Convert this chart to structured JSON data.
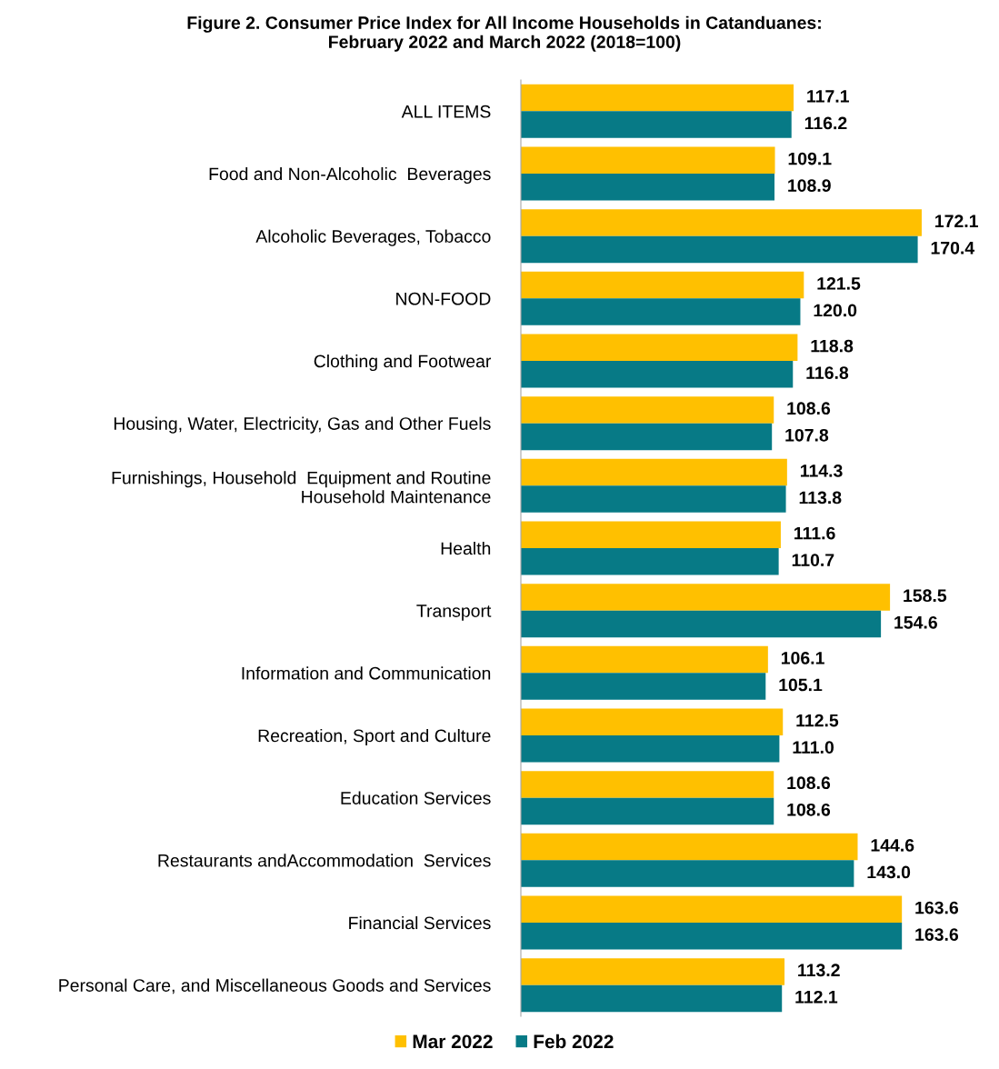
{
  "chart_data": {
    "type": "bar",
    "orientation": "horizontal",
    "title": "Figure 2. Consumer Price Index for All Income Households in Catanduanes:\nFebruary 2022 and March 2022 (2018=100)",
    "categories": [
      "ALL ITEMS",
      "Food and Non-Alcoholic  Beverages",
      "Alcoholic Beverages, Tobacco",
      "NON-FOOD",
      "Clothing and Footwear",
      "Housing, Water, Electricity, Gas and Other Fuels",
      "Furnishings, Household  Equipment and Routine\nHousehold Maintenance",
      "Health",
      "Transport",
      "Information and Communication",
      "Recreation, Sport and Culture",
      "Education Services",
      "Restaurants andAccommodation  Services",
      "Financial Services",
      "Personal Care, and Miscellaneous Goods and Services"
    ],
    "series": [
      {
        "name": "Mar 2022",
        "color": "#ffc000",
        "values": [
          117.1,
          109.1,
          172.1,
          121.5,
          118.8,
          108.6,
          114.3,
          111.6,
          158.5,
          106.1,
          112.5,
          108.6,
          144.6,
          163.6,
          113.2
        ],
        "value_labels": [
          "117.1",
          "109.1",
          "172.1",
          "121.5",
          "118.8",
          "108.6",
          "114.3",
          "111.6",
          "158.5",
          "106.1",
          "112.5",
          "108.6",
          "144.6",
          "163.6",
          "113.2"
        ]
      },
      {
        "name": "Feb 2022",
        "color": "#077a86",
        "values": [
          116.2,
          108.9,
          170.4,
          120.0,
          116.8,
          107.8,
          113.8,
          110.7,
          154.6,
          105.1,
          111.0,
          108.6,
          143.0,
          163.6,
          112.1
        ],
        "value_labels": [
          "116.2",
          "108.9",
          "170.4",
          "120.0",
          "116.8",
          "107.8",
          "113.8",
          "110.7",
          "154.6",
          "105.1",
          "111.0",
          "108.6",
          "143.0",
          "163.6",
          "112.1"
        ]
      }
    ],
    "tick_labels": "y",
    "legend": "bottom",
    "grid": false
  }
}
